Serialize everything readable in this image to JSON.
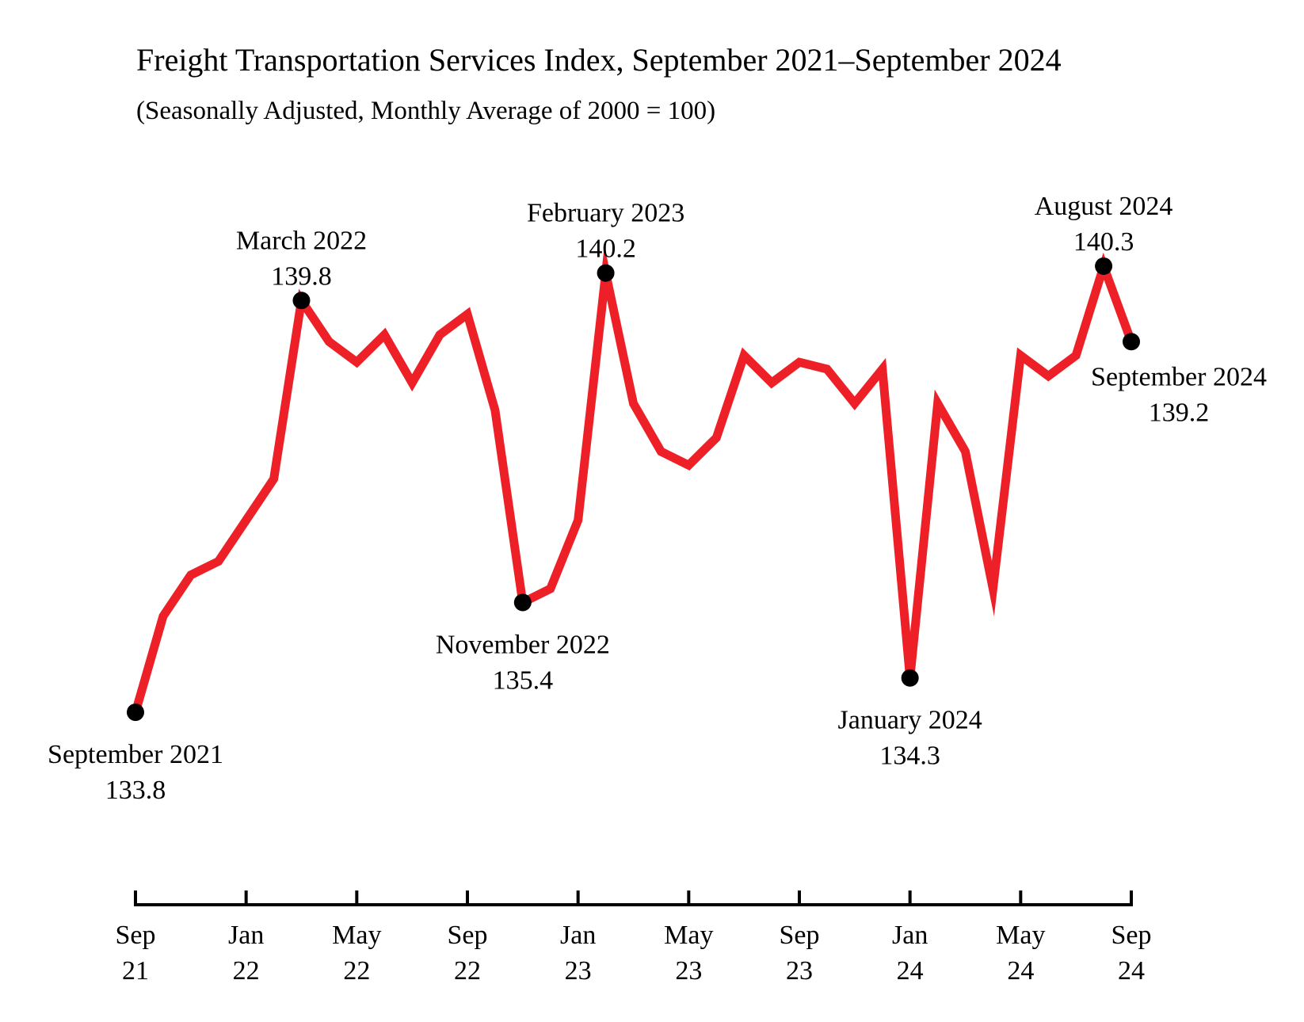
{
  "title": "Freight Transportation Services Index, September 2021–September 2024",
  "subtitle": "(Seasonally Adjusted, Monthly Average of 2000 = 100)",
  "chart_data": {
    "type": "line",
    "title": "Freight Transportation Services Index, September 2021–September 2024",
    "subtitle": "(Seasonally Adjusted, Monthly Average of 2000 = 100)",
    "line_color": "#ee2027",
    "marker_color": "#000000",
    "x": [
      "2021-09",
      "2021-10",
      "2021-11",
      "2021-12",
      "2022-01",
      "2022-02",
      "2022-03",
      "2022-04",
      "2022-05",
      "2022-06",
      "2022-07",
      "2022-08",
      "2022-09",
      "2022-10",
      "2022-11",
      "2022-12",
      "2023-01",
      "2023-02",
      "2023-03",
      "2023-04",
      "2023-05",
      "2023-06",
      "2023-07",
      "2023-08",
      "2023-09",
      "2023-10",
      "2023-11",
      "2023-12",
      "2024-01",
      "2024-02",
      "2024-03",
      "2024-04",
      "2024-05",
      "2024-06",
      "2024-07",
      "2024-08",
      "2024-09"
    ],
    "values": [
      133.8,
      135.2,
      135.8,
      136.0,
      136.6,
      137.2,
      139.8,
      139.2,
      138.9,
      139.3,
      138.6,
      139.3,
      139.6,
      138.2,
      135.4,
      135.6,
      136.6,
      140.2,
      138.3,
      137.6,
      137.4,
      137.8,
      139.0,
      138.6,
      138.9,
      138.8,
      138.3,
      138.8,
      134.3,
      138.3,
      137.6,
      135.6,
      139.0,
      138.7,
      139.0,
      140.3,
      139.2
    ],
    "y_range": [
      132.0,
      141.5
    ],
    "x_axis_ticks": [
      {
        "x": "2021-09",
        "line1": "Sep",
        "line2": "21"
      },
      {
        "x": "2022-01",
        "line1": "Jan",
        "line2": "22"
      },
      {
        "x": "2022-05",
        "line1": "May",
        "line2": "22"
      },
      {
        "x": "2022-09",
        "line1": "Sep",
        "line2": "22"
      },
      {
        "x": "2023-01",
        "line1": "Jan",
        "line2": "23"
      },
      {
        "x": "2023-05",
        "line1": "May",
        "line2": "23"
      },
      {
        "x": "2023-09",
        "line1": "Sep",
        "line2": "23"
      },
      {
        "x": "2024-01",
        "line1": "Jan",
        "line2": "24"
      },
      {
        "x": "2024-05",
        "line1": "May",
        "line2": "24"
      },
      {
        "x": "2024-09",
        "line1": "Sep",
        "line2": "24"
      }
    ],
    "grid": false,
    "annotations": [
      {
        "x": "2021-09",
        "label": "September 2021",
        "value": "133.8",
        "position": "below"
      },
      {
        "x": "2022-03",
        "label": "March 2022",
        "value": "139.8",
        "position": "above"
      },
      {
        "x": "2022-11",
        "label": "November 2022",
        "value": "135.4",
        "position": "below"
      },
      {
        "x": "2023-02",
        "label": "February 2023",
        "value": "140.2",
        "position": "above"
      },
      {
        "x": "2024-01",
        "label": "January 2024",
        "value": "134.3",
        "position": "below"
      },
      {
        "x": "2024-08",
        "label": "August 2024",
        "value": "140.3",
        "position": "above"
      },
      {
        "x": "2024-09",
        "label": "September 2024",
        "value": "139.2",
        "position": "below-right"
      }
    ]
  }
}
